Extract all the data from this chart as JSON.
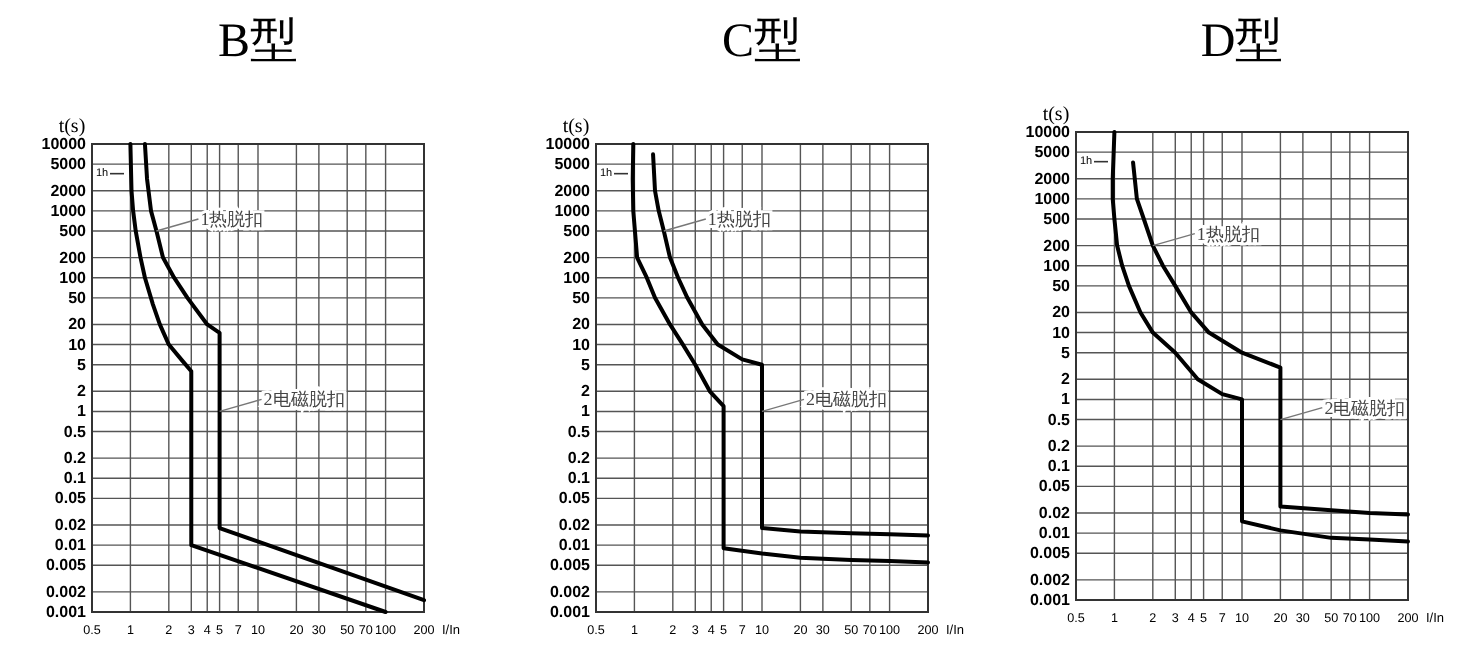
{
  "chart_data": [
    {
      "type": "line",
      "title": "B型",
      "xlabel": "I/In",
      "ylabel": "t(s)",
      "log": "xy",
      "xlim": [
        0.5,
        200
      ],
      "ylim": [
        0.001,
        10000
      ],
      "xticks": [
        0.5,
        1,
        2,
        3,
        4,
        5,
        7,
        10,
        20,
        30,
        50,
        70,
        100,
        200
      ],
      "yticks": [
        0.001,
        0.002,
        0.005,
        0.01,
        0.02,
        0.05,
        0.1,
        0.2,
        0.5,
        1,
        2,
        5,
        10,
        20,
        50,
        100,
        200,
        500,
        1000,
        2000,
        5000,
        10000
      ],
      "grid": true,
      "line_style": "solid",
      "ref_lines": [
        {
          "axis": "y",
          "value": 3600,
          "label": "1h"
        }
      ],
      "series": [
        {
          "color": "#000000",
          "x": [
            1,
            1.02,
            1.05,
            1.1,
            1.2,
            1.3,
            1.5,
            1.7,
            2,
            2.5,
            3,
            3,
            100
          ],
          "values": [
            10000,
            2000,
            1000,
            500,
            200,
            100,
            40,
            20,
            10,
            6,
            4,
            0.01,
            0.001
          ]
        },
        {
          "color": "#000000",
          "x": [
            1.3,
            1.35,
            1.45,
            1.6,
            1.8,
            2.2,
            2.8,
            4,
            5,
            5,
            200
          ],
          "values": [
            10000,
            3000,
            1000,
            500,
            200,
            100,
            50,
            20,
            15,
            0.018,
            0.0015
          ]
        }
      ],
      "annotations": [
        {
          "text": "1热脱扣",
          "x": 1.6,
          "y": 500
        },
        {
          "text": "2电磁脱扣",
          "x": 5,
          "y": 1
        }
      ]
    },
    {
      "type": "line",
      "title": "C型",
      "xlabel": "I/In",
      "ylabel": "t(s)",
      "log": "xy",
      "xlim": [
        0.5,
        200
      ],
      "ylim": [
        0.001,
        10000
      ],
      "xticks": [
        0.5,
        1,
        2,
        3,
        4,
        5,
        7,
        10,
        20,
        30,
        50,
        70,
        100,
        200
      ],
      "yticks": [
        0.001,
        0.002,
        0.005,
        0.01,
        0.02,
        0.05,
        0.1,
        0.2,
        0.5,
        1,
        2,
        5,
        10,
        20,
        50,
        100,
        200,
        500,
        1000,
        2000,
        5000,
        10000
      ],
      "grid": true,
      "line_style": "solid",
      "ref_lines": [
        {
          "axis": "y",
          "value": 3600,
          "label": "1h"
        }
      ],
      "series": [
        {
          "color": "#000000",
          "x": [
            0.98,
            0.97,
            0.98,
            1.05,
            1.25,
            1.45,
            1.9,
            2.4,
            3,
            3.9,
            5,
            5,
            10,
            20,
            50,
            100,
            200
          ],
          "values": [
            10000,
            3000,
            1000,
            200,
            100,
            50,
            20,
            10,
            5,
            2,
            1.2,
            0.009,
            0.0075,
            0.0065,
            0.006,
            0.0058,
            0.0055
          ]
        },
        {
          "color": "#000000",
          "x": [
            1.4,
            1.45,
            1.55,
            1.7,
            1.9,
            2.2,
            2.6,
            3.4,
            4.5,
            7,
            10,
            10,
            20,
            50,
            100,
            200
          ],
          "values": [
            7000,
            2000,
            1000,
            500,
            200,
            100,
            50,
            20,
            10,
            6,
            5,
            0.018,
            0.016,
            0.015,
            0.0145,
            0.014
          ]
        }
      ],
      "annotations": [
        {
          "text": "1热脱扣",
          "x": 1.7,
          "y": 500
        },
        {
          "text": "2电磁脱扣",
          "x": 10,
          "y": 1
        }
      ]
    },
    {
      "type": "line",
      "title": "D型",
      "xlabel": "I/In",
      "ylabel": "t(s)",
      "log": "xy",
      "xlim": [
        0.5,
        200
      ],
      "ylim": [
        0.001,
        10000
      ],
      "xticks": [
        0.5,
        1,
        2,
        3,
        4,
        5,
        7,
        10,
        20,
        30,
        50,
        70,
        100,
        200
      ],
      "yticks": [
        0.001,
        0.002,
        0.005,
        0.01,
        0.02,
        0.05,
        0.1,
        0.2,
        0.5,
        1,
        2,
        5,
        10,
        20,
        50,
        100,
        200,
        500,
        1000,
        2000,
        5000,
        10000
      ],
      "grid": true,
      "line_style": "solid",
      "ref_lines": [
        {
          "axis": "y",
          "value": 3600,
          "label": "1h"
        }
      ],
      "series": [
        {
          "color": "#000000",
          "x": [
            1,
            0.97,
            0.97,
            1,
            1.05,
            1.15,
            1.3,
            1.6,
            2,
            3,
            4.5,
            7,
            10,
            10,
            20,
            50,
            100,
            200
          ],
          "values": [
            10000,
            2000,
            1000,
            500,
            200,
            100,
            50,
            20,
            10,
            5,
            2,
            1.2,
            1,
            0.015,
            0.011,
            0.0085,
            0.008,
            0.0075
          ]
        },
        {
          "color": "#000000",
          "x": [
            1.4,
            1.5,
            1.7,
            2,
            2.4,
            3,
            4,
            5.5,
            10,
            20,
            20,
            50,
            100,
            200
          ],
          "values": [
            3500,
            1000,
            500,
            200,
            100,
            50,
            20,
            10,
            5,
            3,
            0.025,
            0.022,
            0.02,
            0.019
          ]
        }
      ],
      "annotations": [
        {
          "text": "1热脱扣",
          "x": 2,
          "y": 200
        },
        {
          "text": "2电磁脱扣",
          "x": 20,
          "y": 0.5
        }
      ]
    }
  ]
}
